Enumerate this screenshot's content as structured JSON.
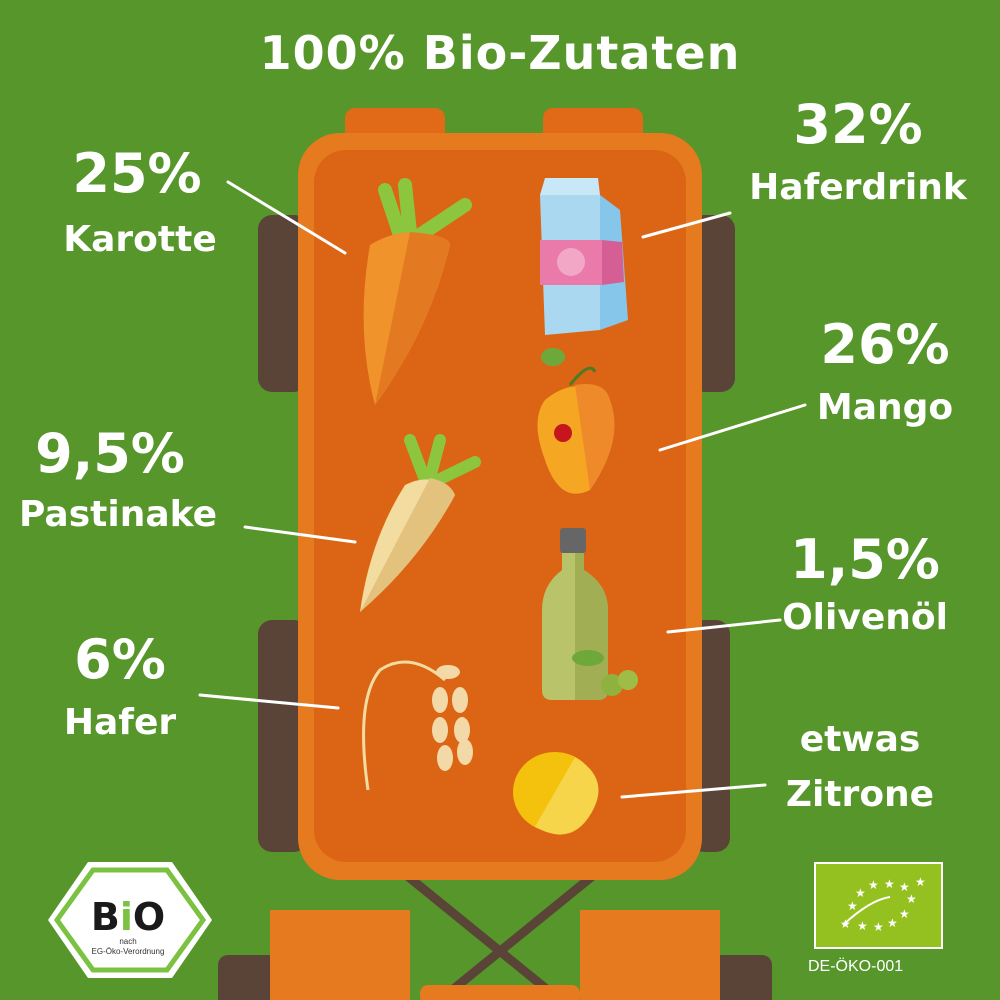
{
  "title": "100% Bio-Zutaten",
  "ingredients": [
    {
      "percent": "25%",
      "name": "Karotte",
      "icon": "carrot-icon"
    },
    {
      "percent": "32%",
      "name": "Haferdrink",
      "icon": "milk-carton-icon"
    },
    {
      "percent": "26%",
      "name": "Mango",
      "icon": "mango-icon"
    },
    {
      "percent": "9,5%",
      "name": "Pastinake",
      "icon": "parsnip-icon"
    },
    {
      "percent": "1,5%",
      "name": "Olivenöl",
      "icon": "olive-oil-bottle-icon"
    },
    {
      "percent": "6%",
      "name": "Hafer",
      "icon": "oat-icon"
    },
    {
      "percent": "etwas",
      "name": "Zitrone",
      "icon": "lemon-icon"
    }
  ],
  "logos": {
    "bio_seal": {
      "word": "BIO",
      "line1": "nach",
      "line2": "EG-Öko-Verordnung"
    },
    "eu_organic": {
      "code": "DE-ÖKO-001"
    }
  },
  "colors": {
    "background": "#56962a",
    "wagon": "#e57a1f",
    "wagon_inner": "#dc6515",
    "wheels": "#5a4438"
  }
}
